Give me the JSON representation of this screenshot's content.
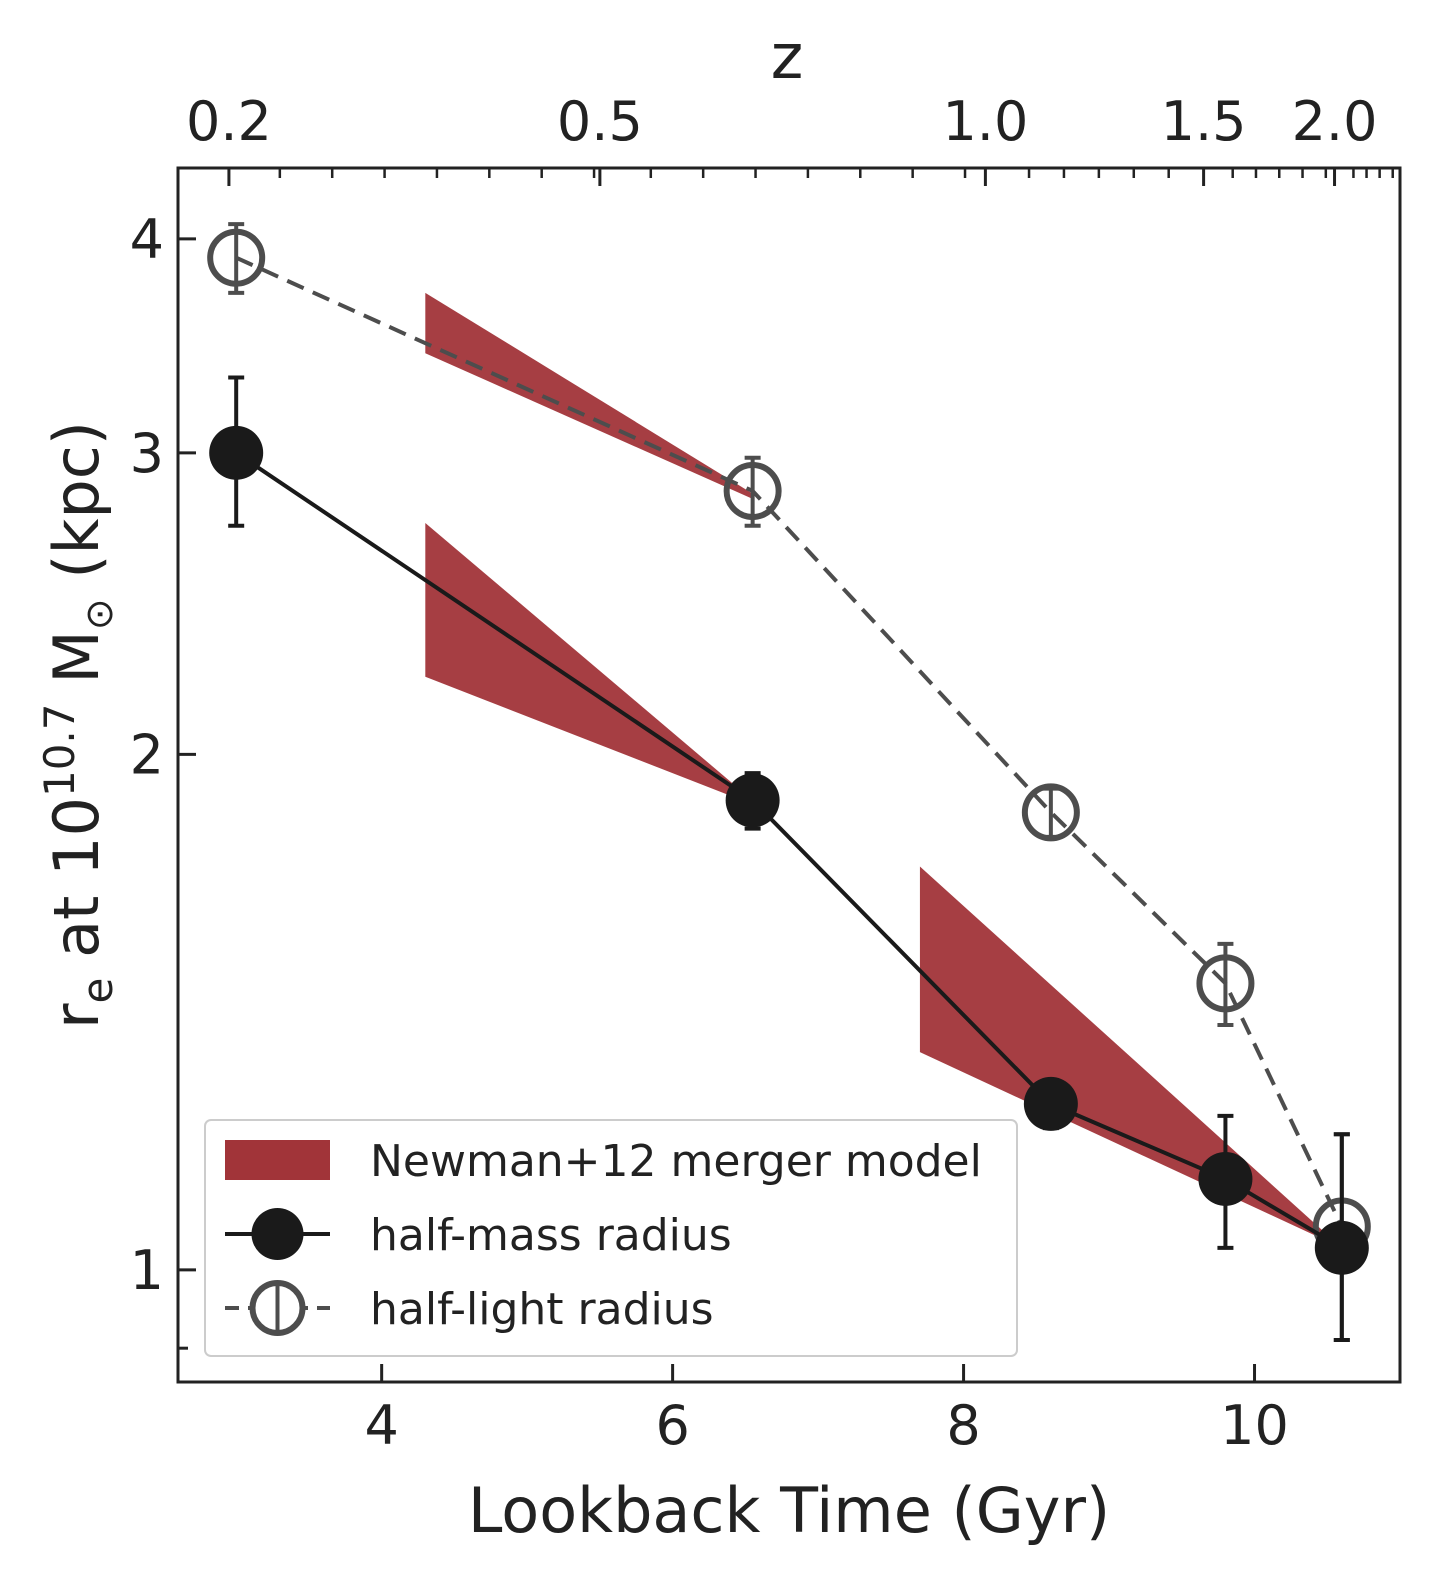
{
  "chart_data": {
    "type": "line",
    "xlabel": "Lookback Time (Gyr)",
    "ylabel": "r_e at 10^10.7 M_sun (kpc)",
    "ylabel_parts": {
      "base": "r",
      "sub": "e",
      "mid": " at 10",
      "sup": "10.7",
      "mass": " M",
      "sun": "⊙",
      "unit": " (kpc)"
    },
    "top_axis_label": "z",
    "xlim": [
      2.6,
      11.0
    ],
    "ylim": [
      0.86,
      4.4
    ],
    "y_scale": "log",
    "x_ticks": [
      4,
      6,
      8,
      10
    ],
    "x_tick_labels": [
      "4",
      "6",
      "8",
      "10"
    ],
    "y_ticks": [
      1,
      2,
      3,
      4
    ],
    "y_tick_labels": [
      "1",
      "2",
      "3",
      "4"
    ],
    "top_ticks": [
      {
        "label": "0.2",
        "t": 2.95
      },
      {
        "label": "0.5",
        "t": 5.5
      },
      {
        "label": "1.0",
        "t": 8.15
      },
      {
        "label": "1.5",
        "t": 9.65
      },
      {
        "label": "2.0",
        "t": 10.55
      }
    ],
    "grid": false,
    "legend_position": "lower-left",
    "series": [
      {
        "name": "half-mass radius",
        "color": "#1a1a1a",
        "marker": "filled-circle",
        "line": "solid",
        "x": [
          3.0,
          6.55,
          8.6,
          9.8,
          10.6
        ],
        "y": [
          3.0,
          1.88,
          1.25,
          1.13,
          1.03
        ],
        "y_low": [
          2.72,
          1.81,
          1.21,
          1.03,
          0.91
        ],
        "y_high": [
          3.32,
          1.95,
          1.29,
          1.23,
          1.2
        ]
      },
      {
        "name": "half-light radius",
        "color": "#4d4d4d",
        "marker": "open-circle",
        "line": "dashed",
        "x": [
          3.0,
          6.55,
          8.6,
          9.8,
          10.6
        ],
        "y": [
          3.9,
          2.85,
          1.85,
          1.47,
          1.06
        ],
        "y_low": [
          3.72,
          2.72,
          1.79,
          1.39,
          0.91
        ],
        "y_high": [
          4.08,
          2.98,
          1.91,
          1.55,
          1.2
        ]
      }
    ],
    "bands": [
      {
        "name": "Newman+12 merger model",
        "color": "#a13439",
        "x": [
          4.3,
          6.55
        ],
        "upper": [
          3.72,
          2.84
        ],
        "lower": [
          3.43,
          2.82
        ]
      },
      {
        "name": "Newman+12 merger model",
        "color": "#a13439",
        "x": [
          4.3,
          6.55
        ],
        "upper": [
          2.73,
          1.88
        ],
        "lower": [
          2.22,
          1.87
        ]
      },
      {
        "name": "Newman+12 merger model",
        "color": "#a13439",
        "x": [
          7.7,
          10.6
        ],
        "upper": [
          1.72,
          1.03
        ],
        "lower": [
          1.34,
          1.03
        ]
      }
    ],
    "legend": [
      {
        "label": "Newman+12 merger model",
        "kind": "band",
        "color": "#a13439"
      },
      {
        "label": "half-mass radius",
        "kind": "filled",
        "color": "#1a1a1a"
      },
      {
        "label": "half-light radius",
        "kind": "open",
        "color": "#4d4d4d"
      }
    ]
  }
}
